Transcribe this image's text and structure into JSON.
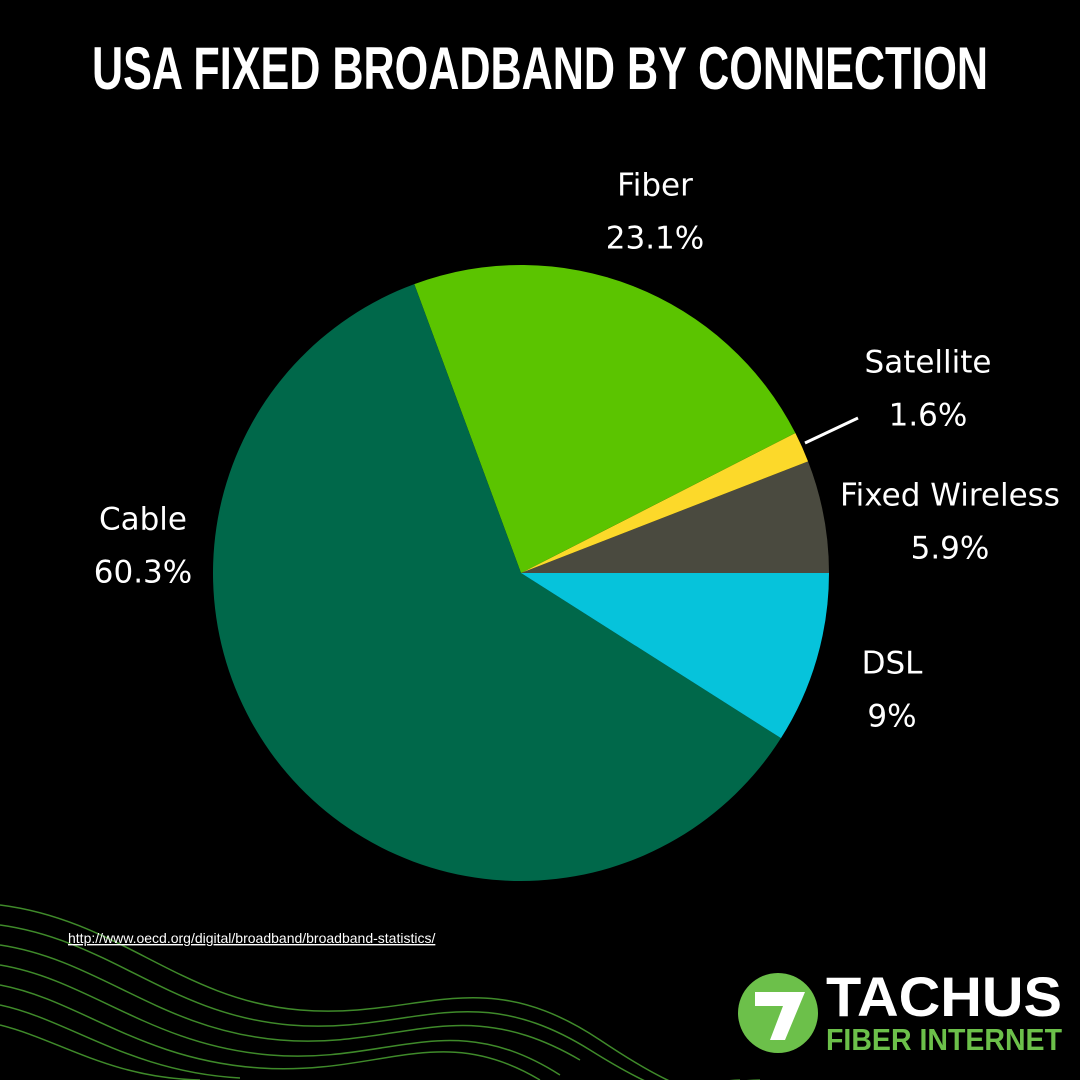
{
  "chart_data": {
    "type": "pie",
    "title": "USA FIXED BROADBAND BY CONNECTION",
    "categories": [
      "Fixed Wireless",
      "Satellite",
      "Fiber",
      "Cable",
      "DSL"
    ],
    "values": [
      5.9,
      1.6,
      23.1,
      60.3,
      9
    ],
    "value_labels": [
      "5.9%",
      "1.6%",
      "23.1%",
      "60.3%",
      "9%"
    ],
    "colors": [
      "#4a4a3f",
      "#fcd92a",
      "#5bc400",
      "#00684a",
      "#06c3db"
    ]
  },
  "source": "http://www.oecd.org/digital/broadband/broadband-statistics/",
  "logo": {
    "name": "TACHUS",
    "tagline": "FIBER INTERNET"
  }
}
